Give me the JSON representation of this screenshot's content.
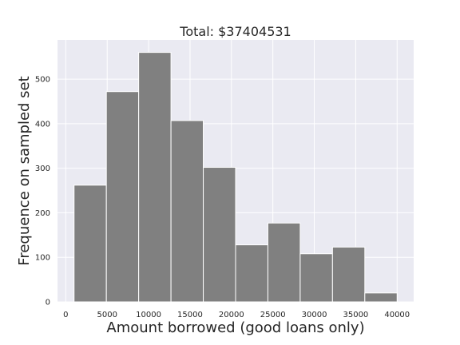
{
  "chart_data": {
    "type": "bar",
    "title": "Total: $37404531",
    "xlabel": "Amount borrowed (good loans only)",
    "ylabel": "Frequence on sampled set",
    "bin_edges": [
      1000,
      4900,
      8800,
      12700,
      16600,
      20500,
      24400,
      28300,
      32200,
      36100,
      40000
    ],
    "values": [
      262,
      472,
      560,
      407,
      302,
      128,
      177,
      108,
      123,
      20
    ],
    "xlim": [
      -1000,
      42000
    ],
    "ylim": [
      0,
      588
    ],
    "x_ticks": [
      0,
      5000,
      10000,
      15000,
      20000,
      25000,
      30000,
      35000,
      40000
    ],
    "y_ticks": [
      0,
      100,
      200,
      300,
      400,
      500
    ],
    "grid": true,
    "colors": {
      "background": "#EAEAF2",
      "bar": "#808080",
      "grid": "#FFFFFF",
      "text": "#262626"
    }
  }
}
